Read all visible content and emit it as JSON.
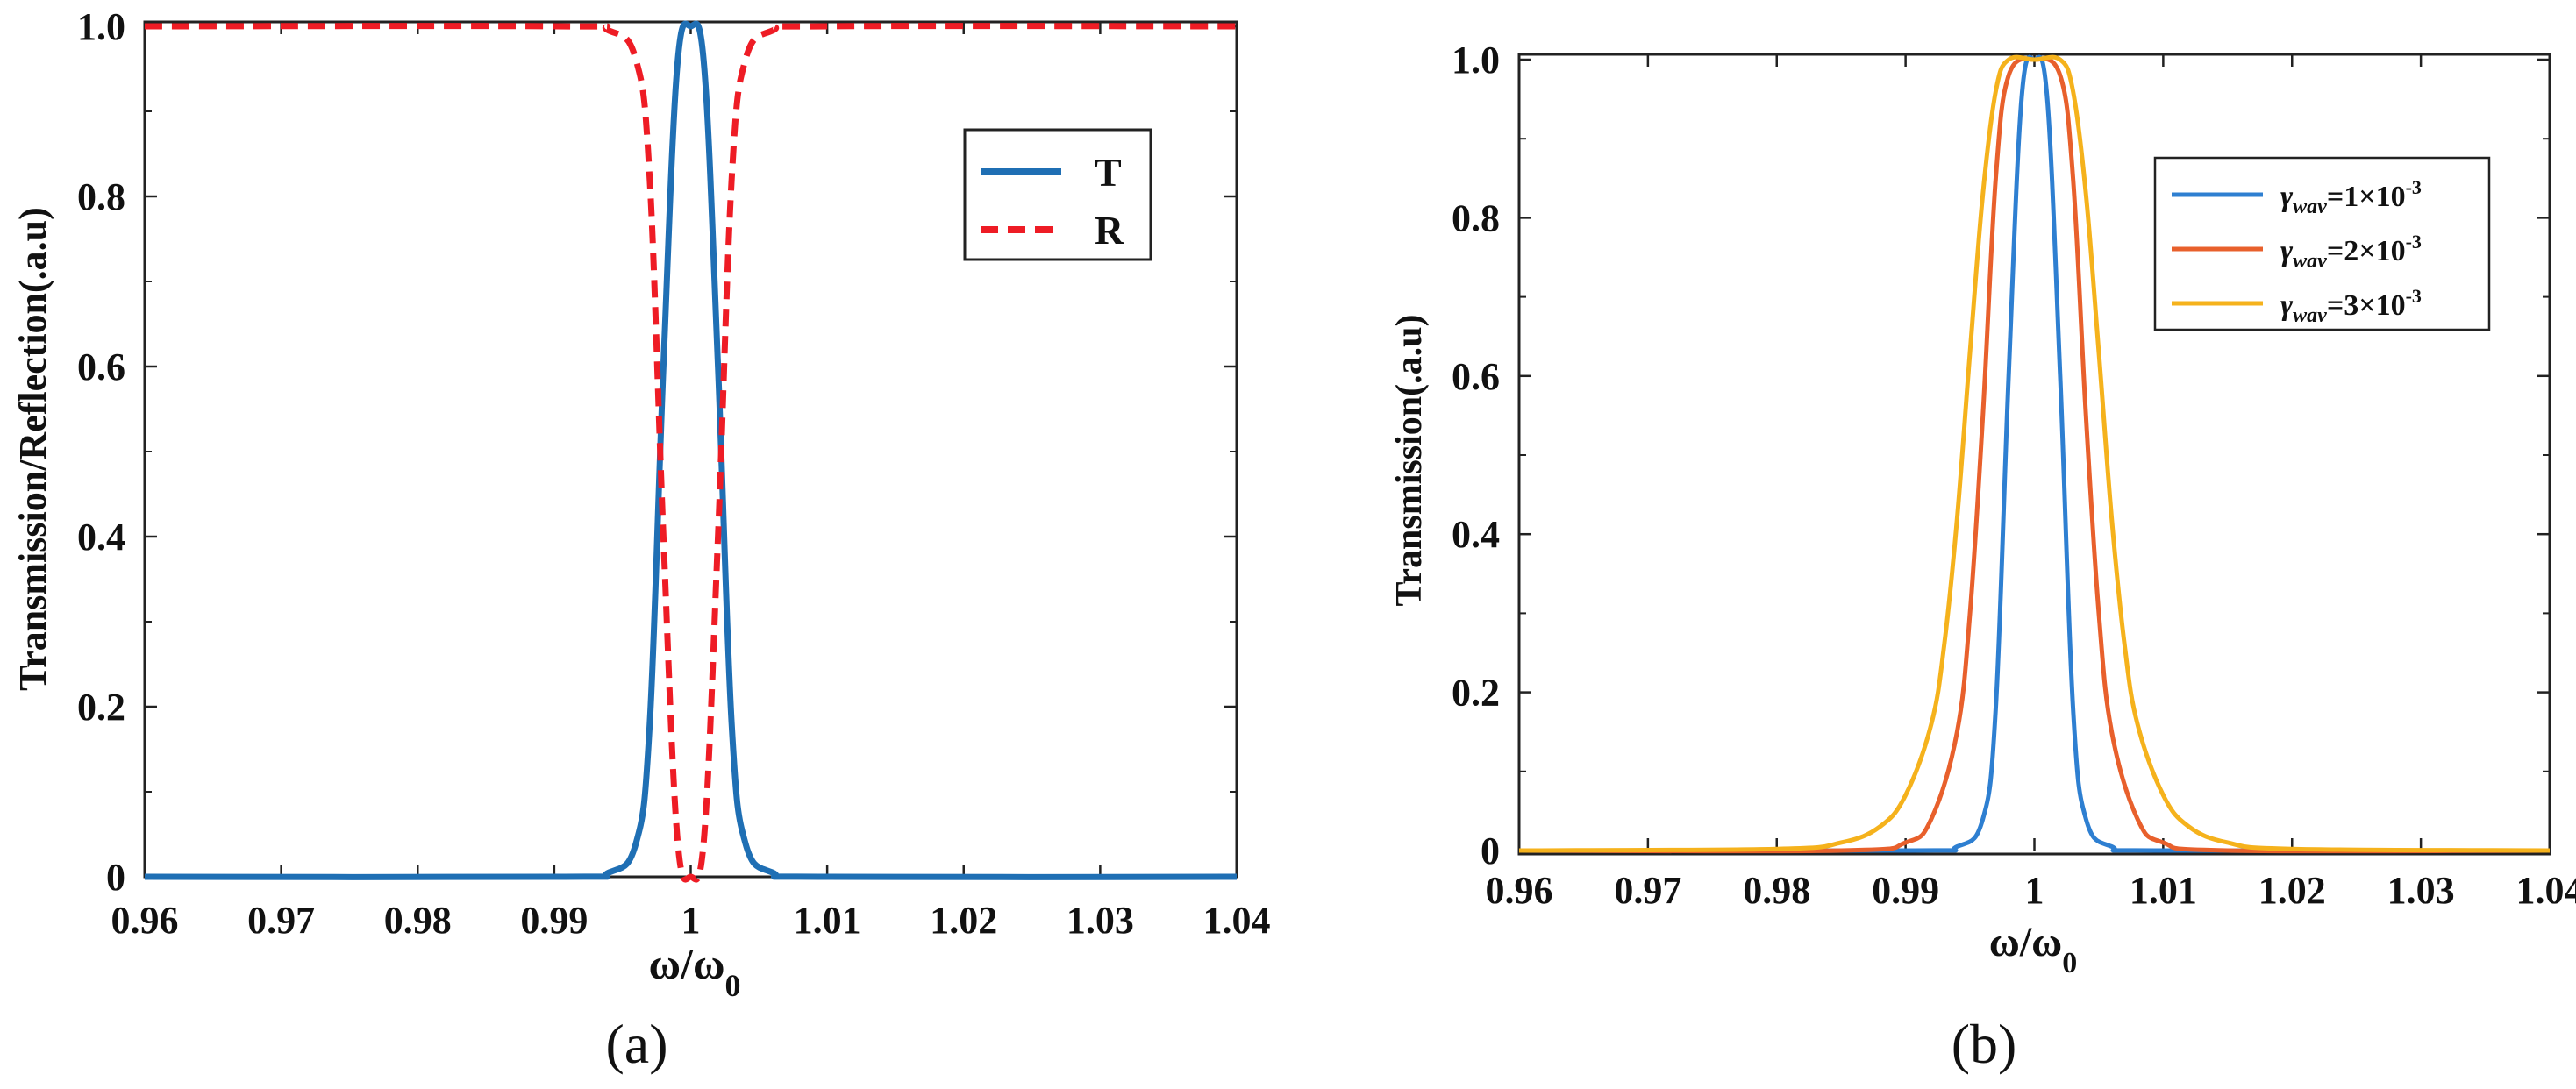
{
  "chart_data": [
    {
      "type": "line",
      "panel_label": "(a)",
      "xlabel": "ω/ω0",
      "ylabel": "Transmission/Reflection(.a.u)",
      "xlim": [
        0.96,
        1.04
      ],
      "ylim": [
        0,
        1
      ],
      "x_ticks": [
        "0.96",
        "0.97",
        "0.98",
        "0.99",
        "1",
        "1.01",
        "1.02",
        "1.03",
        "1.04"
      ],
      "y_ticks": [
        "0",
        "0.2",
        "0.4",
        "0.6",
        "0.8",
        "1.0"
      ],
      "legend_position": "top-right",
      "grid": false,
      "series": [
        {
          "name": "T",
          "color": "#1f6fb4",
          "style": "solid",
          "x": [
            0.96,
            0.99,
            0.994,
            0.996,
            0.997,
            0.998,
            0.999,
            1.0,
            1.001,
            1.002,
            1.003,
            1.004,
            1.006,
            1.01,
            1.04
          ],
          "y": [
            0.0,
            0.0,
            0.005,
            0.04,
            0.18,
            0.6,
            0.95,
            1.0,
            0.95,
            0.6,
            0.18,
            0.04,
            0.005,
            0.0,
            0.0
          ]
        },
        {
          "name": "R",
          "color": "#ee1c25",
          "style": "dashed",
          "x": [
            0.96,
            0.99,
            0.994,
            0.996,
            0.997,
            0.998,
            0.999,
            1.0,
            1.001,
            1.002,
            1.003,
            1.004,
            1.006,
            1.01,
            1.04
          ],
          "y": [
            1.0,
            1.0,
            0.995,
            0.96,
            0.82,
            0.4,
            0.05,
            0.0,
            0.05,
            0.4,
            0.82,
            0.96,
            0.995,
            1.0,
            1.0
          ]
        }
      ]
    },
    {
      "type": "line",
      "panel_label": "(b)",
      "xlabel": "ω/ω0",
      "ylabel": "Transmission(.a.u)",
      "xlim": [
        0.96,
        1.04
      ],
      "ylim": [
        0,
        1
      ],
      "x_ticks": [
        "0.96",
        "0.97",
        "0.98",
        "0.99",
        "1",
        "1.01",
        "1.02",
        "1.03",
        "1.04"
      ],
      "y_ticks": [
        "0",
        "0.2",
        "0.4",
        "0.6",
        "0.8",
        "1.0"
      ],
      "legend_position": "top-right",
      "grid": false,
      "series": [
        {
          "name_symbol": "γ",
          "name_sub": "wav",
          "name_value": "=1×10",
          "name_exp": "-3",
          "color": "#2e7fd1",
          "x": [
            0.96,
            0.99,
            0.994,
            0.996,
            0.997,
            0.998,
            0.999,
            1.0,
            1.001,
            1.002,
            1.003,
            1.004,
            1.006,
            1.01,
            1.04
          ],
          "y": [
            0.0,
            0.0,
            0.005,
            0.04,
            0.18,
            0.6,
            0.95,
            1.0,
            0.95,
            0.6,
            0.18,
            0.04,
            0.005,
            0.0,
            0.0
          ]
        },
        {
          "name_symbol": "γ",
          "name_sub": "wav",
          "name_value": "=2×10",
          "name_exp": "-3",
          "color": "#e8602c",
          "x": [
            0.96,
            0.985,
            0.99,
            0.992,
            0.994,
            0.995,
            0.996,
            0.997,
            0.998,
            1.0,
            1.002,
            1.003,
            1.004,
            1.005,
            1.006,
            1.008,
            1.01,
            1.015,
            1.04
          ],
          "y": [
            0.0,
            0.0,
            0.01,
            0.04,
            0.15,
            0.3,
            0.55,
            0.85,
            0.98,
            1.0,
            0.98,
            0.85,
            0.55,
            0.3,
            0.15,
            0.04,
            0.01,
            0.0,
            0.0
          ]
        },
        {
          "name_symbol": "γ",
          "name_sub": "wav",
          "name_value": "=3×10",
          "name_exp": "-3",
          "color": "#f5b21c",
          "x": [
            0.96,
            0.98,
            0.985,
            0.988,
            0.99,
            0.992,
            0.993,
            0.994,
            0.995,
            0.996,
            0.997,
            0.998,
            1.0,
            1.002,
            1.003,
            1.004,
            1.005,
            1.006,
            1.007,
            1.008,
            1.01,
            1.012,
            1.015,
            1.02,
            1.04
          ],
          "y": [
            0.0,
            0.002,
            0.01,
            0.03,
            0.07,
            0.16,
            0.26,
            0.42,
            0.63,
            0.83,
            0.96,
            1.0,
            1.0,
            1.0,
            0.96,
            0.83,
            0.63,
            0.42,
            0.26,
            0.16,
            0.07,
            0.03,
            0.01,
            0.002,
            0.0
          ]
        }
      ]
    }
  ]
}
